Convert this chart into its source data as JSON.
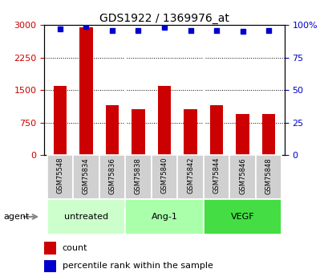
{
  "title": "GDS1922 / 1369976_at",
  "categories": [
    "GSM75548",
    "GSM75834",
    "GSM75836",
    "GSM75838",
    "GSM75840",
    "GSM75842",
    "GSM75844",
    "GSM75846",
    "GSM75848"
  ],
  "bar_values": [
    1600,
    2950,
    1150,
    1050,
    1600,
    1050,
    1150,
    950,
    950
  ],
  "dot_values": [
    97,
    99,
    96,
    96,
    98,
    96,
    96,
    95,
    96
  ],
  "bar_color": "#cc0000",
  "dot_color": "#0000cc",
  "ylim_left": [
    0,
    3000
  ],
  "ylim_right": [
    0,
    100
  ],
  "yticks_left": [
    0,
    750,
    1500,
    2250,
    3000
  ],
  "yticks_right": [
    0,
    25,
    50,
    75,
    100
  ],
  "groups": [
    {
      "label": "untreated",
      "start": 0,
      "end": 3,
      "color": "#ccffcc"
    },
    {
      "label": "Ang-1",
      "start": 3,
      "end": 6,
      "color": "#aaffaa"
    },
    {
      "label": "VEGF",
      "start": 6,
      "end": 9,
      "color": "#44dd44"
    }
  ],
  "agent_label": "agent",
  "legend_bar_label": "count",
  "legend_dot_label": "percentile rank within the sample",
  "tick_label_color_left": "#cc0000",
  "tick_label_color_right": "#0000cc",
  "bar_width": 0.5
}
